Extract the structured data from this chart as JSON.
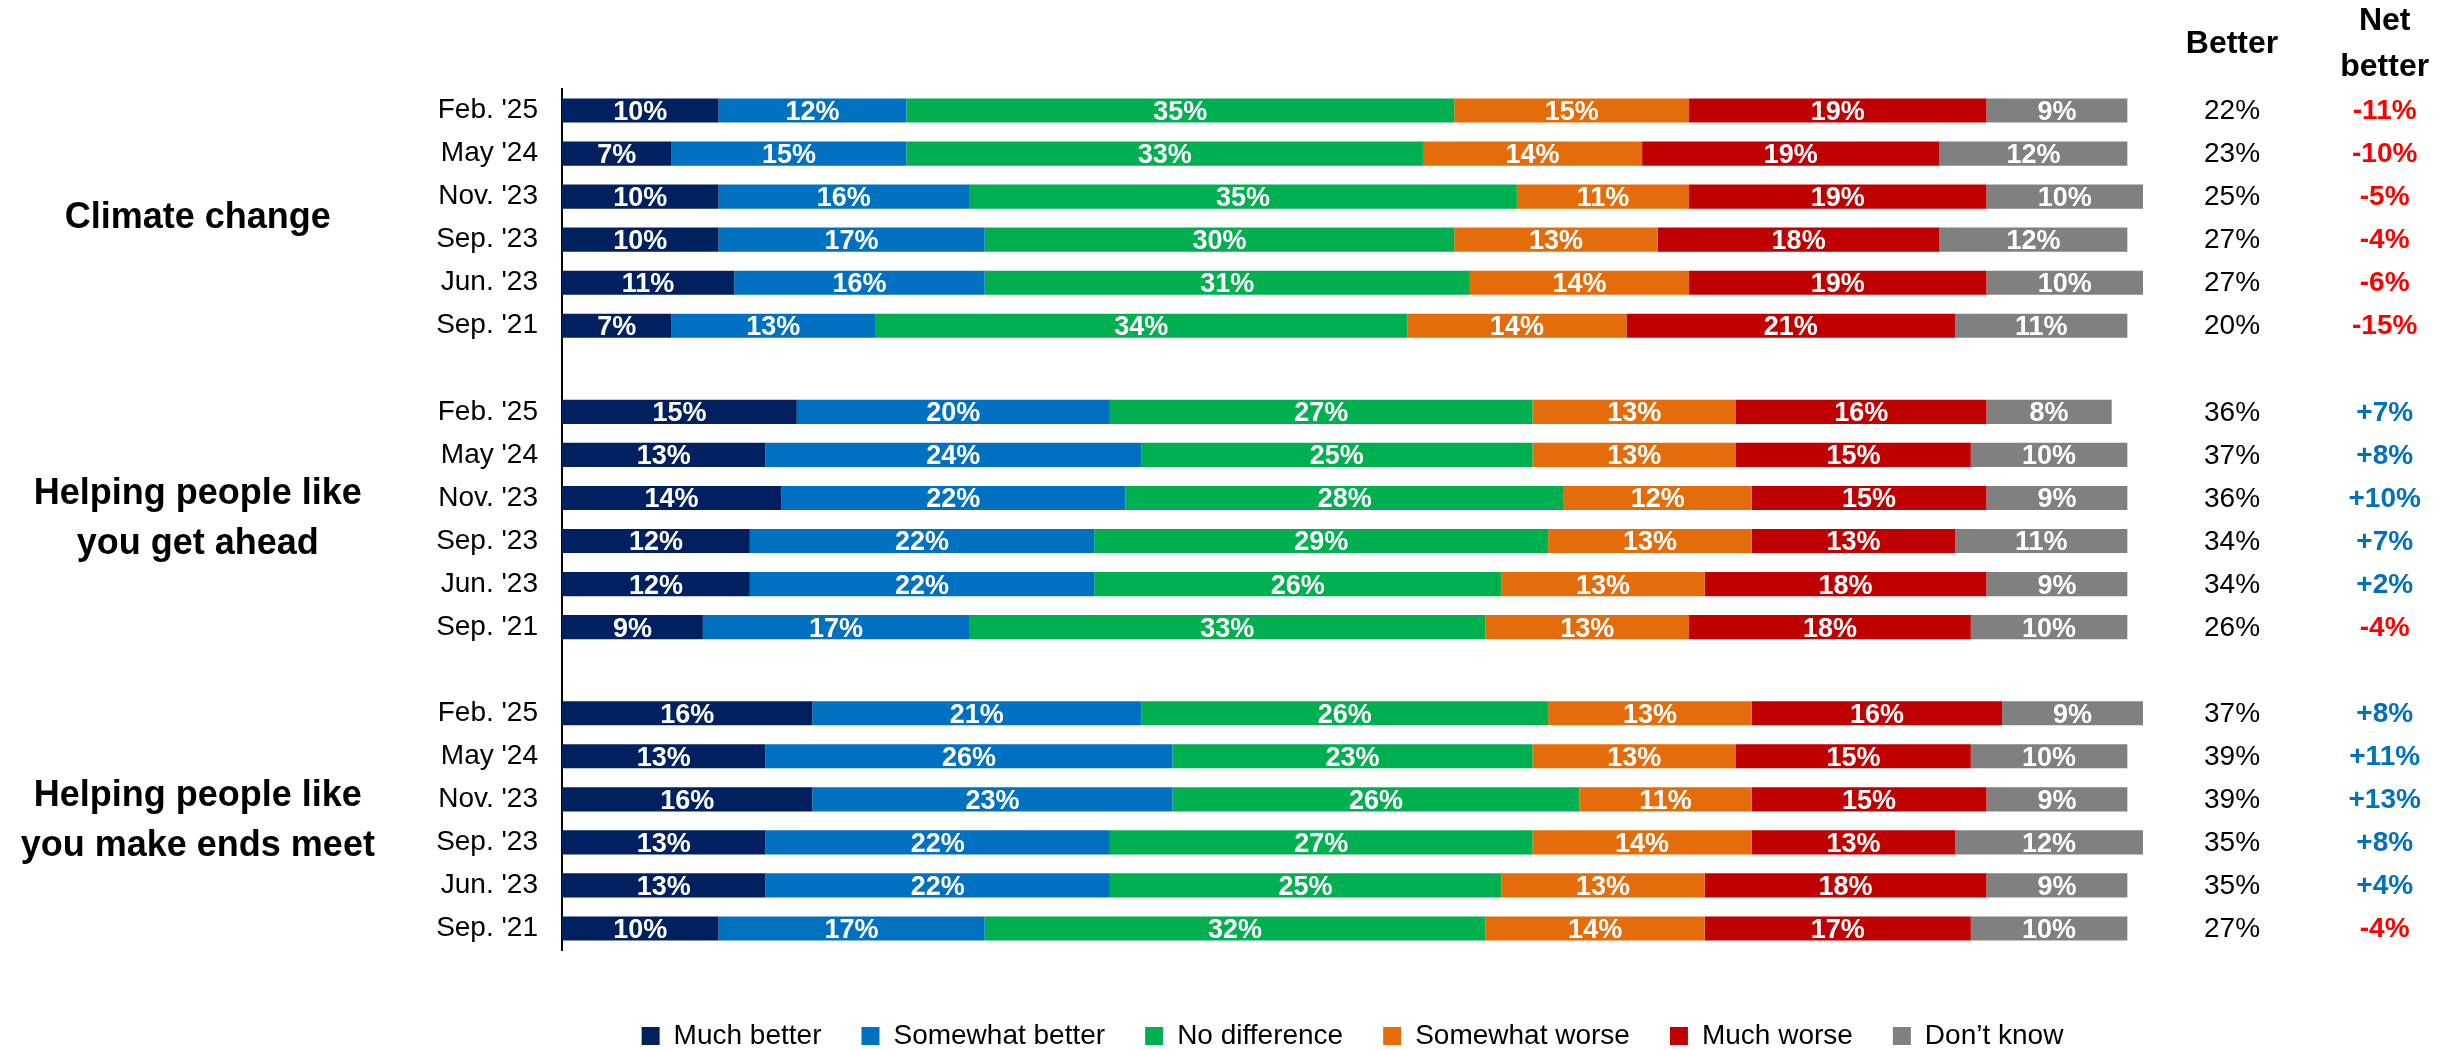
{
  "chart_data": [
    {
      "type": "bar",
      "orientation": "horizontal",
      "stacked": true,
      "categories": [
        "Feb. '25",
        "May '24",
        "Nov. '23",
        "Sep. '23",
        "Jun. '23",
        "Sep. '21",
        null,
        "Feb. '25",
        "May '24",
        "Nov. '23",
        "Sep. '23",
        "Jun. '23",
        "Sep. '21",
        null,
        "Feb. '25",
        "May '24",
        "Nov. '23",
        "Sep. '23",
        "Jun. '23",
        "Sep. '21"
      ],
      "series": [
        {
          "name": "Much better",
          "color": "#002060",
          "values": [
            10,
            7,
            10,
            10,
            11,
            7,
            null,
            15,
            13,
            14,
            12,
            12,
            9,
            null,
            16,
            13,
            16,
            13,
            13,
            10
          ],
          "value_labels": [
            "10%",
            "7%",
            "10%",
            "10%",
            "11%",
            "7%",
            null,
            "15%",
            "13%",
            "14%",
            "12%",
            "12%",
            "9%",
            null,
            "16%",
            "13%",
            "16%",
            "13%",
            "13%",
            "10%"
          ]
        },
        {
          "name": "Somewhat better",
          "color": "#0070c0",
          "values": [
            12,
            15,
            16,
            17,
            16,
            13,
            null,
            20,
            24,
            22,
            22,
            22,
            17,
            null,
            21,
            26,
            23,
            22,
            22,
            17
          ],
          "value_labels": [
            "12%",
            "15%",
            "16%",
            "17%",
            "16%",
            "13%",
            null,
            "20%",
            "24%",
            "22%",
            "22%",
            "22%",
            "17%",
            null,
            "21%",
            "26%",
            "23%",
            "22%",
            "22%",
            "17%"
          ]
        },
        {
          "name": "No difference",
          "color": "#00b050",
          "values": [
            35,
            33,
            35,
            30,
            31,
            34,
            null,
            27,
            25,
            28,
            29,
            26,
            33,
            null,
            26,
            23,
            26,
            27,
            25,
            32
          ],
          "value_labels": [
            "35%",
            "33%",
            "35%",
            "30%",
            "31%",
            "34%",
            null,
            "27%",
            "25%",
            "28%",
            "29%",
            "26%",
            "33%",
            null,
            "26%",
            "23%",
            "26%",
            "27%",
            "25%",
            "32%"
          ]
        },
        {
          "name": "Somewhat worse",
          "color": "#e46c0a",
          "values": [
            15,
            14,
            11,
            13,
            14,
            14,
            null,
            13,
            13,
            12,
            13,
            13,
            13,
            null,
            13,
            13,
            11,
            14,
            13,
            14
          ],
          "value_labels": [
            "15%",
            "14%",
            "11%",
            "13%",
            "14%",
            "14%",
            null,
            "13%",
            "13%",
            "12%",
            "13%",
            "13%",
            "13%",
            null,
            "13%",
            "13%",
            "11%",
            "14%",
            "13%",
            "14%"
          ]
        },
        {
          "name": "Much worse",
          "color": "#c00000",
          "values": [
            19,
            19,
            19,
            18,
            19,
            21,
            null,
            16,
            15,
            15,
            13,
            18,
            18,
            null,
            16,
            15,
            15,
            13,
            18,
            17
          ],
          "value_labels": [
            "19%",
            "19%",
            "19%",
            "18%",
            "19%",
            "21%",
            null,
            "16%",
            "15%",
            "15%",
            "13%",
            "18%",
            "18%",
            null,
            "16%",
            "15%",
            "15%",
            "13%",
            "18%",
            "17%"
          ]
        },
        {
          "name": "Don’t know",
          "color": "#808080",
          "values": [
            9,
            12,
            10,
            12,
            10,
            11,
            null,
            8,
            10,
            9,
            11,
            9,
            10,
            null,
            9,
            10,
            9,
            12,
            9,
            10
          ],
          "value_labels": [
            "9%",
            "12%",
            "10%",
            "12%",
            "10%",
            "11%",
            null,
            "8%",
            "10%",
            "9%",
            "11%",
            "9%",
            "10%",
            null,
            "9%",
            "10%",
            "9%",
            "12%",
            "9%",
            "10%"
          ]
        }
      ],
      "xlim": [
        0,
        101
      ],
      "tick_labels": "y",
      "legend": "bottom",
      "annotations": [
        "Climate change",
        "Helping people like you get ahead",
        "Helping people like you make ends meet"
      ]
    },
    {
      "type": "other",
      "title": "Better",
      "annotations": [
        "22%",
        "23%",
        "25%",
        "27%",
        "27%",
        "20%",
        "36%",
        "37%",
        "36%",
        "34%",
        "34%",
        "26%",
        "37%",
        "39%",
        "39%",
        "35%",
        "35%",
        "27%"
      ]
    },
    {
      "type": "other",
      "title": "Net better",
      "annotations": [
        "-11%",
        "-10%",
        "-5%",
        "-4%",
        "-6%",
        "-15%",
        "+7%",
        "+8%",
        "+10%",
        "+7%",
        "+2%",
        "-4%",
        "+8%",
        "+11%",
        "+13%",
        "+8%",
        "+4%",
        "-4%"
      ],
      "colors": [
        "#ff0000",
        "#ff0000",
        "#ff0000",
        "#ff0000",
        "#ff0000",
        "#ff0000",
        "#0070c0",
        "#0070c0",
        "#0070c0",
        "#0070c0",
        "#0070c0",
        "#ff0000",
        "#0070c0",
        "#0070c0",
        "#0070c0",
        "#0070c0",
        "#0070c0",
        "#ff0000"
      ]
    }
  ]
}
